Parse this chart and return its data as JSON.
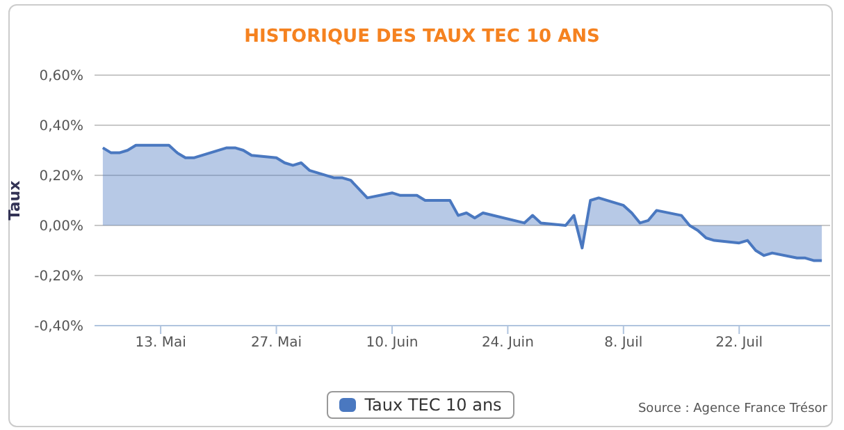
{
  "chart_data": {
    "type": "area",
    "title": "HISTORIQUE DES TAUX TEC 10 ANS",
    "ylabel": "Taux",
    "annotations": [
      "Source : Agence France Trésor"
    ],
    "x": [
      "--05-06",
      "--05-07",
      "--05-08",
      "--05-09",
      "--05-10",
      "--05-13",
      "--05-14",
      "--05-15",
      "--05-16",
      "--05-17",
      "--05-21",
      "--05-22",
      "--05-23",
      "--05-24",
      "--05-27",
      "--05-28",
      "--05-29",
      "--05-30",
      "--05-31",
      "--06-03",
      "--06-04",
      "--06-05",
      "--06-07",
      "--06-10",
      "--06-11",
      "--06-13",
      "--06-14",
      "--06-17",
      "--06-18",
      "--06-19",
      "--06-20",
      "--06-21",
      "--06-26",
      "--06-27",
      "--06-28",
      "--07-01",
      "--07-02",
      "--07-03",
      "--07-04",
      "--07-05",
      "--07-08",
      "--07-09",
      "--07-10",
      "--07-11",
      "--07-12",
      "--07-15",
      "--07-16",
      "--07-17",
      "--07-18",
      "--07-19",
      "--07-22",
      "--07-23",
      "--07-24",
      "--07-25",
      "--07-26",
      "--07-29",
      "--07-30",
      "--07-31",
      "--08-01"
    ],
    "series": [
      {
        "name": "Taux TEC 10 ans",
        "color": "#4a78c0",
        "values": [
          0.31,
          0.29,
          0.29,
          0.3,
          0.32,
          0.32,
          0.32,
          0.29,
          0.27,
          0.27,
          0.31,
          0.31,
          0.3,
          0.28,
          0.27,
          0.25,
          0.24,
          0.25,
          0.22,
          0.19,
          0.19,
          0.18,
          0.11,
          0.13,
          0.12,
          0.12,
          0.1,
          0.1,
          0.04,
          0.05,
          0.03,
          0.05,
          0.01,
          0.04,
          0.01,
          0.0,
          0.04,
          -0.09,
          0.1,
          0.11,
          0.08,
          0.05,
          0.01,
          0.02,
          0.06,
          0.04,
          0.0,
          -0.02,
          -0.05,
          -0.06,
          -0.07,
          -0.06,
          -0.1,
          -0.12,
          -0.11,
          -0.13,
          -0.13,
          -0.14,
          -0.14
        ]
      }
    ],
    "xlim": [
      "--05-05",
      "--08-02"
    ],
    "xticks": [
      {
        "value": "--05-13",
        "label": "13. Mai"
      },
      {
        "value": "--05-27",
        "label": "27. Mai"
      },
      {
        "value": "--06-10",
        "label": "10. Juin"
      },
      {
        "value": "--06-24",
        "label": "24. Juin"
      },
      {
        "value": "--07-08",
        "label": "8. Juil"
      },
      {
        "value": "--07-22",
        "label": "22. Juil"
      }
    ],
    "ylim": [
      -0.4,
      0.6
    ],
    "yticks": [
      {
        "value": -0.4,
        "label": "-0,40%"
      },
      {
        "value": -0.2,
        "label": "-0,20%"
      },
      {
        "value": 0,
        "label": "0,00%"
      },
      {
        "value": 0.2,
        "label": "0,20%"
      },
      {
        "value": 0.4,
        "label": "0,40%"
      },
      {
        "value": 0.6,
        "label": "0,60%"
      }
    ],
    "grid": "y",
    "legend": "bottom",
    "marker": "none",
    "line_style": "solid"
  }
}
